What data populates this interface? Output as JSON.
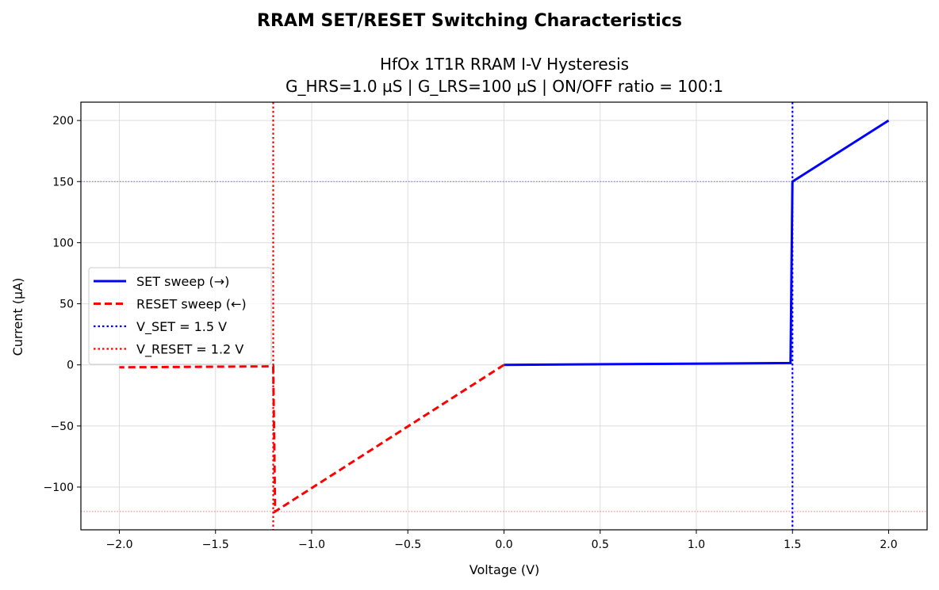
{
  "figure": {
    "suptitle": "RRAM SET/RESET Switching Characteristics",
    "title_line1": "HfOx 1T1R RRAM I-V Hysteresis",
    "title_line2": "G_HRS=1.0 µS | G_LRS=100 µS | ON/OFF ratio = 100:1"
  },
  "chart_data": {
    "type": "line",
    "xlabel": "Voltage (V)",
    "ylabel": "Current (µA)",
    "xlim": [
      -2.2,
      2.2
    ],
    "ylim": [
      -135,
      215
    ],
    "x_ticks": [
      -2.0,
      -1.5,
      -1.0,
      -0.5,
      0.0,
      0.5,
      1.0,
      1.5,
      2.0
    ],
    "x_tick_labels": [
      "−2.0",
      "−1.5",
      "−1.0",
      "−0.5",
      "0.0",
      "0.5",
      "1.0",
      "1.5",
      "2.0"
    ],
    "y_ticks": [
      -100,
      -50,
      0,
      50,
      100,
      150,
      200
    ],
    "y_tick_labels": [
      "−100",
      "−50",
      "0",
      "50",
      "100",
      "150",
      "200"
    ],
    "grid": true,
    "legend_position": "center-left",
    "series": [
      {
        "name": "SET sweep (→)",
        "color": "#0000ff",
        "style": "solid",
        "x": [
          0.0,
          1.49,
          1.5,
          2.0
        ],
        "y": [
          0.0,
          1.5,
          150,
          200
        ]
      },
      {
        "name": "RESET sweep (←)",
        "color": "#ff0000",
        "style": "dashed",
        "x": [
          0.0,
          -1.19,
          -1.2,
          -2.0
        ],
        "y": [
          0.0,
          -120,
          -1.2,
          -2.0
        ]
      },
      {
        "name": "V_SET = 1.5 V",
        "color": "#0000ff",
        "style": "dotted",
        "kind": "vline",
        "x": 1.5
      },
      {
        "name": "V_RESET = 1.2 V",
        "color": "#ff0000",
        "style": "dotted",
        "kind": "vline",
        "x": -1.2
      }
    ],
    "reference_lines": [
      {
        "kind": "hline",
        "y": 150,
        "color": "#0000ff"
      },
      {
        "kind": "hline",
        "y": -120,
        "color": "#ff0000"
      }
    ]
  }
}
